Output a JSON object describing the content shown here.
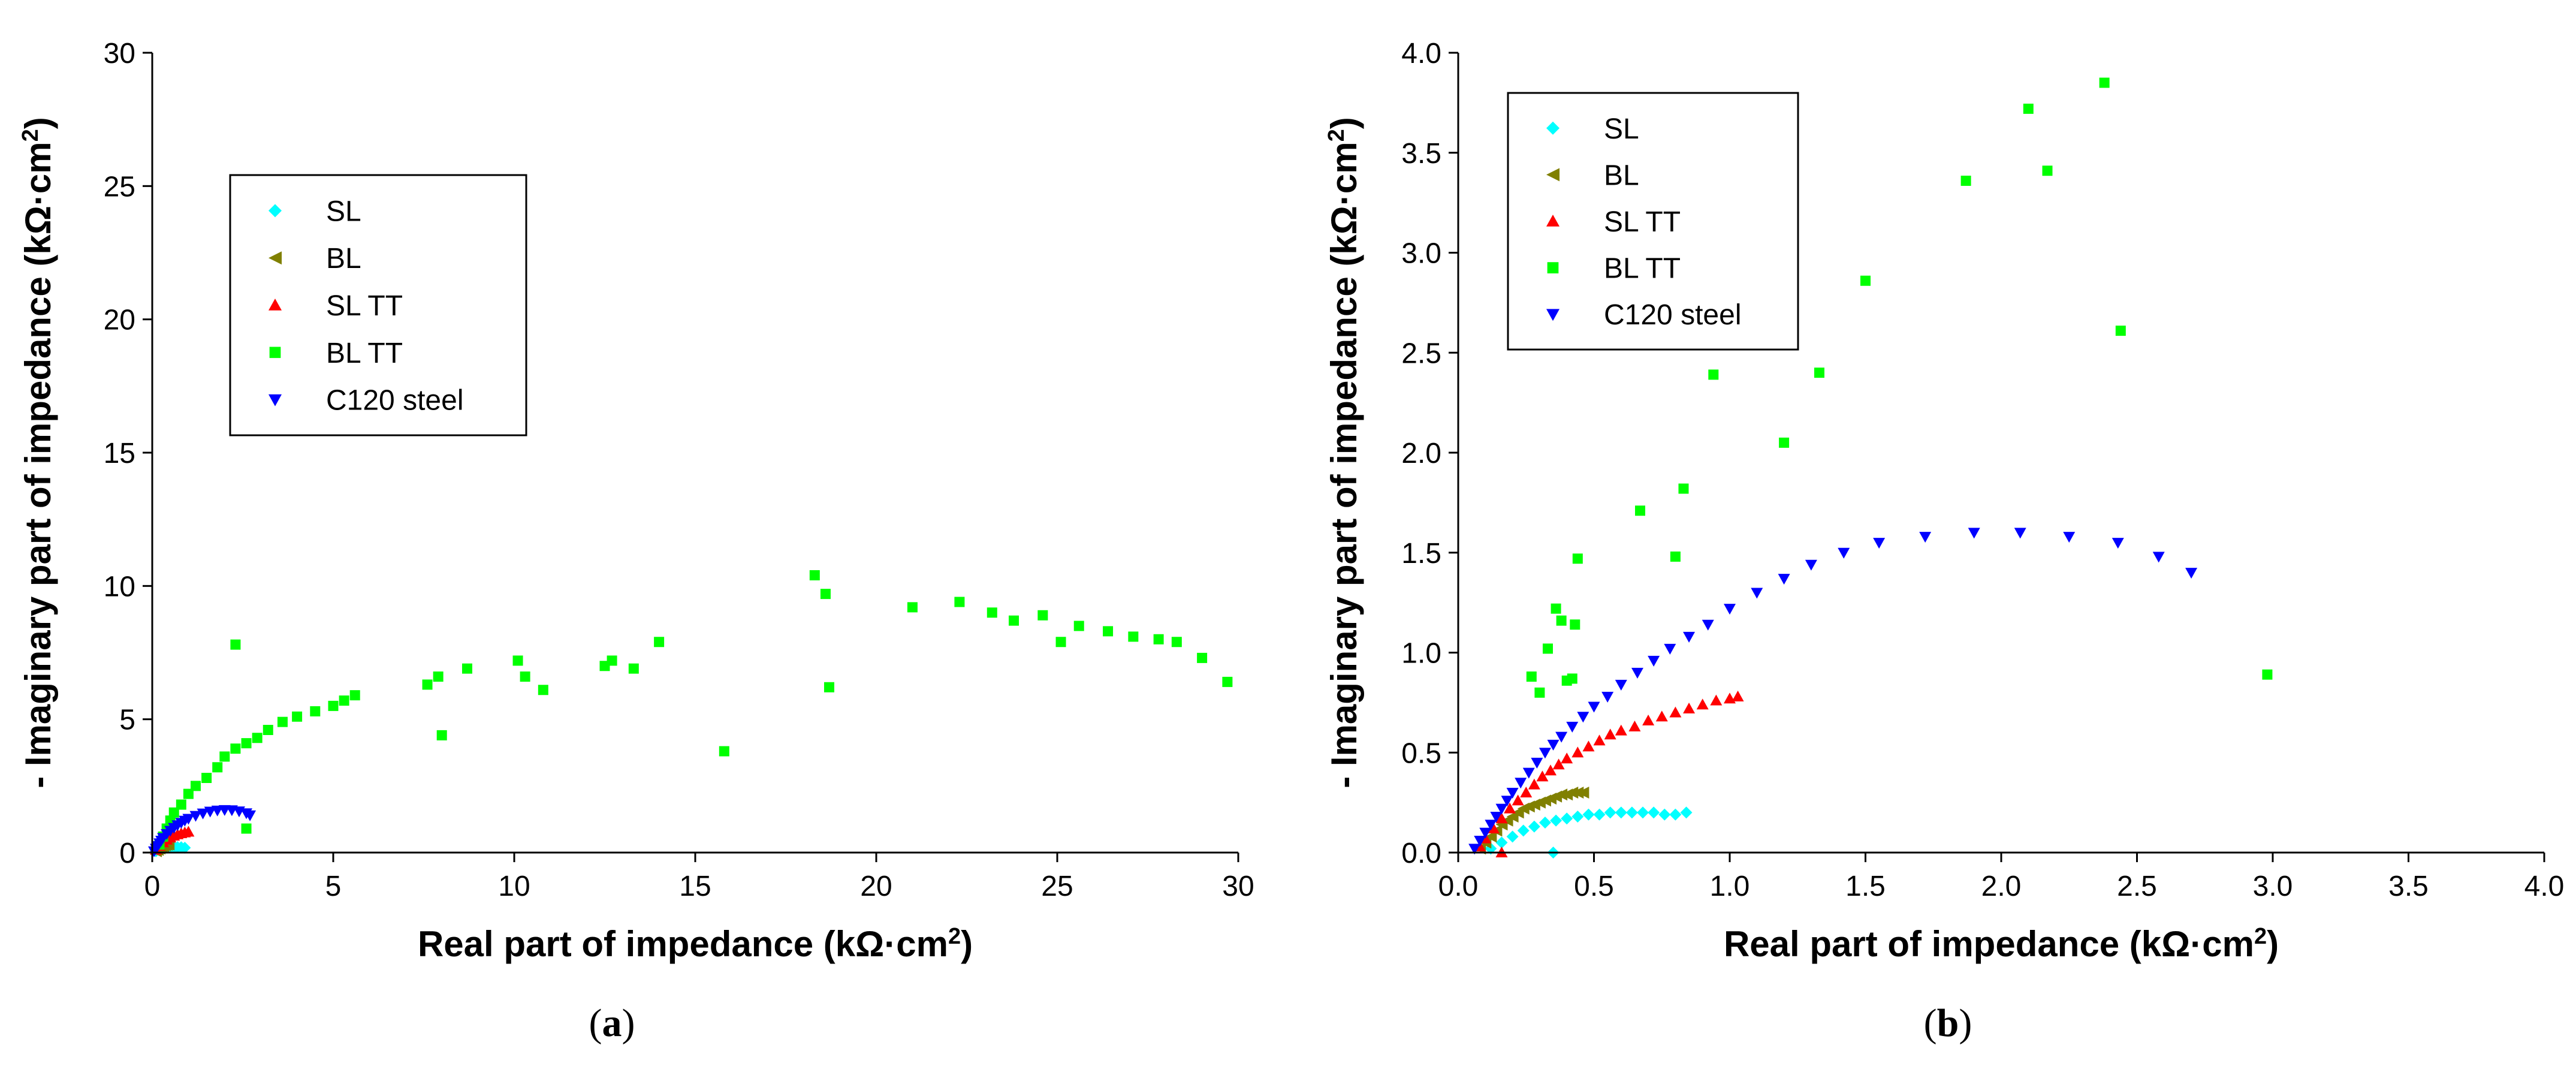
{
  "chart_data": [
    {
      "type": "scatter",
      "panel_label": "a",
      "xlabel": "Real part of impedance (kΩ·cm²)",
      "ylabel": "- Imaginary part of impedance (kΩ·cm²)",
      "xlim": [
        0,
        30
      ],
      "ylim": [
        0,
        30
      ],
      "xticks": [
        0,
        5,
        10,
        15,
        20,
        25,
        30
      ],
      "yticks": [
        0,
        5,
        10,
        15,
        20,
        25,
        30
      ],
      "tick_format": "integer",
      "grid": false,
      "legend_position": "upper-left",
      "series": [
        {
          "name": "SL",
          "color": "#00ffff",
          "marker": "diamond",
          "x": [
            0.1,
            0.2,
            0.3,
            0.4,
            0.5,
            0.6,
            0.7,
            0.8,
            0.9
          ],
          "y": [
            0.05,
            0.1,
            0.15,
            0.18,
            0.2,
            0.2,
            0.2,
            0.2,
            0.18
          ]
        },
        {
          "name": "BL",
          "color": "#808000",
          "marker": "triangle-left",
          "x": [
            0.1,
            0.15,
            0.2,
            0.25,
            0.3,
            0.35,
            0.4,
            0.45
          ],
          "y": [
            0.05,
            0.1,
            0.15,
            0.2,
            0.24,
            0.27,
            0.29,
            0.3
          ]
        },
        {
          "name": "SL TT",
          "color": "#ff0000",
          "marker": "triangle-up",
          "x": [
            0.1,
            0.2,
            0.3,
            0.4,
            0.5,
            0.6,
            0.7,
            0.8,
            0.9,
            1.0
          ],
          "y": [
            0.1,
            0.25,
            0.38,
            0.48,
            0.56,
            0.63,
            0.68,
            0.72,
            0.75,
            0.78
          ]
        },
        {
          "name": "BL TT",
          "color": "#00ff00",
          "marker": "square",
          "x": [
            0.2,
            0.3,
            0.4,
            0.5,
            0.6,
            0.8,
            1.0,
            1.2,
            1.5,
            1.8,
            2.0,
            2.3,
            2.6,
            2.9,
            3.2,
            3.6,
            4.0,
            4.5,
            5.0,
            5.3,
            5.6,
            2.3,
            2.6,
            7.6,
            7.9,
            8.0,
            8.7,
            10.1,
            10.3,
            10.8,
            12.5,
            12.7,
            13.3,
            14.0,
            15.8,
            18.3,
            18.6,
            18.7,
            21.0,
            22.3,
            23.2,
            23.8,
            24.6,
            25.1,
            25.6,
            26.4,
            27.1,
            27.8,
            28.3,
            29.0,
            29.7
          ],
          "y": [
            0.3,
            0.6,
            0.9,
            1.2,
            1.5,
            1.8,
            2.2,
            2.5,
            2.8,
            3.2,
            3.6,
            3.9,
            4.1,
            4.3,
            4.6,
            4.9,
            5.1,
            5.3,
            5.5,
            5.7,
            5.9,
            7.8,
            0.9,
            6.3,
            6.6,
            4.4,
            6.9,
            7.2,
            6.6,
            6.1,
            7.0,
            7.2,
            6.9,
            7.9,
            3.8,
            10.4,
            9.7,
            6.2,
            9.2,
            9.4,
            9.0,
            8.7,
            8.9,
            7.9,
            8.5,
            8.3,
            8.1,
            8.0,
            7.9,
            7.3,
            6.4
          ]
        },
        {
          "name": "C120 steel",
          "color": "#0000ff",
          "marker": "triangle-down",
          "x": [
            0.05,
            0.1,
            0.15,
            0.2,
            0.25,
            0.3,
            0.4,
            0.5,
            0.6,
            0.7,
            0.8,
            0.9,
            1.0,
            1.2,
            1.4,
            1.6,
            1.8,
            2.0,
            2.2,
            2.4,
            2.6,
            2.7
          ],
          "y": [
            0.05,
            0.15,
            0.25,
            0.35,
            0.45,
            0.55,
            0.7,
            0.82,
            0.93,
            1.03,
            1.12,
            1.2,
            1.27,
            1.38,
            1.47,
            1.54,
            1.58,
            1.6,
            1.59,
            1.55,
            1.48,
            1.4
          ]
        }
      ]
    },
    {
      "type": "scatter",
      "panel_label": "b",
      "xlabel": "Real part of impedance (kΩ·cm²)",
      "ylabel": "- Imaginary part of impedance (kΩ·cm²)",
      "xlim": [
        0,
        4
      ],
      "ylim": [
        0,
        4
      ],
      "xticks": [
        0.0,
        0.5,
        1.0,
        1.5,
        2.0,
        2.5,
        3.0,
        3.5,
        4.0
      ],
      "yticks": [
        0.0,
        0.5,
        1.0,
        1.5,
        2.0,
        2.5,
        3.0,
        3.5,
        4.0
      ],
      "tick_format": "one-decimal",
      "grid": false,
      "legend_position": "upper-left",
      "series": [
        {
          "name": "SL",
          "color": "#00ffff",
          "marker": "diamond",
          "x": [
            0.12,
            0.16,
            0.2,
            0.24,
            0.28,
            0.32,
            0.36,
            0.4,
            0.44,
            0.48,
            0.52,
            0.56,
            0.6,
            0.64,
            0.68,
            0.72,
            0.76,
            0.8,
            0.84,
            0.35
          ],
          "y": [
            0.02,
            0.05,
            0.08,
            0.11,
            0.13,
            0.15,
            0.16,
            0.17,
            0.18,
            0.19,
            0.19,
            0.2,
            0.2,
            0.2,
            0.2,
            0.2,
            0.19,
            0.19,
            0.2,
            0.0
          ]
        },
        {
          "name": "BL",
          "color": "#808000",
          "marker": "triangle-left",
          "x": [
            0.08,
            0.1,
            0.12,
            0.14,
            0.16,
            0.18,
            0.2,
            0.22,
            0.24,
            0.26,
            0.28,
            0.3,
            0.32,
            0.34,
            0.36,
            0.38,
            0.4,
            0.42,
            0.44,
            0.46
          ],
          "y": [
            0.02,
            0.05,
            0.08,
            0.11,
            0.14,
            0.16,
            0.18,
            0.2,
            0.22,
            0.23,
            0.24,
            0.25,
            0.26,
            0.27,
            0.28,
            0.29,
            0.29,
            0.3,
            0.3,
            0.3
          ]
        },
        {
          "name": "SL TT",
          "color": "#ff0000",
          "marker": "triangle-up",
          "x": [
            0.08,
            0.1,
            0.13,
            0.16,
            0.19,
            0.22,
            0.25,
            0.28,
            0.31,
            0.34,
            0.37,
            0.4,
            0.44,
            0.48,
            0.52,
            0.56,
            0.6,
            0.65,
            0.7,
            0.75,
            0.8,
            0.85,
            0.9,
            0.95,
            1.0,
            1.03,
            0.16
          ],
          "y": [
            0.03,
            0.07,
            0.12,
            0.17,
            0.22,
            0.26,
            0.3,
            0.34,
            0.38,
            0.41,
            0.44,
            0.47,
            0.5,
            0.53,
            0.56,
            0.59,
            0.61,
            0.63,
            0.66,
            0.68,
            0.7,
            0.72,
            0.74,
            0.76,
            0.77,
            0.78,
            0.0
          ]
        },
        {
          "name": "BL TT",
          "color": "#00ff00",
          "marker": "square",
          "x": [
            0.27,
            0.3,
            0.33,
            0.36,
            0.38,
            0.4,
            0.43,
            0.44,
            0.42,
            0.67,
            0.8,
            0.83,
            0.94,
            1.2,
            1.33,
            1.5,
            1.87,
            2.1,
            2.17,
            2.38,
            2.44,
            2.98
          ],
          "y": [
            0.88,
            0.8,
            1.02,
            1.22,
            1.16,
            0.86,
            1.14,
            1.47,
            0.87,
            1.71,
            1.48,
            1.82,
            2.39,
            2.05,
            2.4,
            2.86,
            3.36,
            3.72,
            3.41,
            3.85,
            2.61,
            0.89
          ]
        },
        {
          "name": "C120 steel",
          "color": "#0000ff",
          "marker": "triangle-down",
          "x": [
            0.06,
            0.08,
            0.1,
            0.12,
            0.14,
            0.16,
            0.18,
            0.2,
            0.23,
            0.26,
            0.29,
            0.32,
            0.35,
            0.38,
            0.42,
            0.46,
            0.5,
            0.55,
            0.6,
            0.66,
            0.72,
            0.78,
            0.85,
            0.92,
            1.0,
            1.1,
            1.2,
            1.3,
            1.42,
            1.55,
            1.72,
            1.9,
            2.07,
            2.25,
            2.43,
            2.58,
            2.7
          ],
          "y": [
            0.02,
            0.06,
            0.1,
            0.14,
            0.18,
            0.22,
            0.26,
            0.3,
            0.35,
            0.4,
            0.45,
            0.5,
            0.54,
            0.58,
            0.63,
            0.68,
            0.73,
            0.78,
            0.84,
            0.9,
            0.96,
            1.02,
            1.08,
            1.14,
            1.22,
            1.3,
            1.37,
            1.44,
            1.5,
            1.55,
            1.58,
            1.6,
            1.6,
            1.58,
            1.55,
            1.48,
            1.4
          ]
        }
      ]
    }
  ]
}
